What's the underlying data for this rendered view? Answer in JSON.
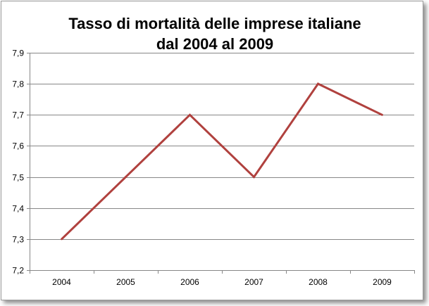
{
  "chart_data": {
    "type": "line",
    "title_lines": [
      "Tasso di mortalità delle imprese italiane",
      "dal 2004 al 2009"
    ],
    "categories": [
      "2004",
      "2005",
      "2006",
      "2007",
      "2008",
      "2009"
    ],
    "series": [
      {
        "values": [
          7.3,
          7.5,
          7.7,
          7.5,
          7.8,
          7.7
        ],
        "color": "#b0413e"
      }
    ],
    "ylim": [
      7.2,
      7.9
    ],
    "y_ticks": [
      "7,2",
      "7,3",
      "7,4",
      "7,5",
      "7,6",
      "7,7",
      "7,8",
      "7,9"
    ],
    "grid": "horizontal",
    "legend": "none"
  }
}
